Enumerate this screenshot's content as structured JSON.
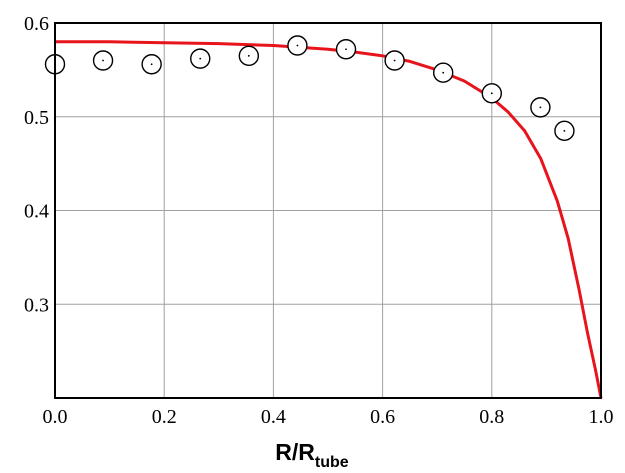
{
  "chart_data": {
    "type": "scatter",
    "xlabel": "R/R",
    "xlabel_subscript": "tube",
    "xlim": [
      0.0,
      1.0
    ],
    "ylim": [
      0.2,
      0.6
    ],
    "x_ticks": [
      0.0,
      0.2,
      0.4,
      0.6,
      0.8,
      1.0
    ],
    "x_tick_labels": [
      "0.0",
      "0.2",
      "0.4",
      "0.6",
      "0.8",
      "1.0"
    ],
    "y_ticks": [
      0.3,
      0.4,
      0.5,
      0.6
    ],
    "y_tick_labels": [
      "0.3",
      "0.4",
      "0.5",
      "0.6"
    ],
    "grid": true,
    "series": [
      {
        "type": "scatter",
        "marker": "open-circle-with-dot",
        "color": "#000000",
        "x": [
          0.0,
          0.088,
          0.177,
          0.266,
          0.355,
          0.444,
          0.533,
          0.622,
          0.711,
          0.8,
          0.889,
          0.933
        ],
        "y": [
          0.556,
          0.56,
          0.556,
          0.562,
          0.565,
          0.576,
          0.572,
          0.56,
          0.547,
          0.525,
          0.51,
          0.485
        ]
      },
      {
        "type": "line",
        "color": "#e8141b",
        "x": [
          0.0,
          0.1,
          0.2,
          0.3,
          0.4,
          0.5,
          0.55,
          0.6,
          0.65,
          0.7,
          0.75,
          0.8,
          0.83,
          0.86,
          0.89,
          0.92,
          0.94,
          0.96,
          0.975,
          0.99,
          1.0
        ],
        "y": [
          0.58,
          0.58,
          0.579,
          0.578,
          0.576,
          0.572,
          0.569,
          0.565,
          0.559,
          0.55,
          0.538,
          0.52,
          0.505,
          0.485,
          0.455,
          0.41,
          0.37,
          0.315,
          0.27,
          0.23,
          0.2
        ]
      }
    ]
  }
}
